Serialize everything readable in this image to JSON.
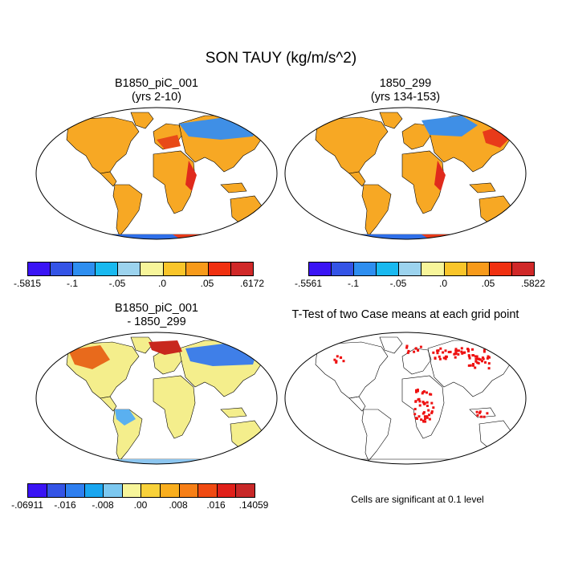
{
  "title": "SON TAUY (kg/m/s^2)",
  "panels": [
    {
      "id": "p1",
      "title_line1": "B1850_piC_001",
      "title_line2": "(yrs 2-10)"
    },
    {
      "id": "p2",
      "title_line1": "1850_299",
      "title_line2": "(yrs 134-153)"
    },
    {
      "id": "p3",
      "title_line1": "B1850_piC_001",
      "title_line2": "- 1850_299"
    },
    {
      "id": "p4",
      "title_line1": "T-Test of two Case means at each grid point",
      "title_line2": ""
    }
  ],
  "colorbars": [
    {
      "colors": [
        "#3a14f5",
        "#3454e6",
        "#2e8ef0",
        "#19b9f0",
        "#9cd3ee",
        "#f7f59a",
        "#f9c52a",
        "#f79a1a",
        "#f03010",
        "#d02828"
      ],
      "labels": [
        "-.5815",
        "-.1",
        "-.05",
        ".0",
        ".05",
        ".6172"
      ]
    },
    {
      "colors": [
        "#3a14f5",
        "#3454e6",
        "#2e8ef0",
        "#19b9f0",
        "#9cd3ee",
        "#f7f59a",
        "#f9c52a",
        "#f79a1a",
        "#f03010",
        "#d02828"
      ],
      "labels": [
        "-.5561",
        "-.1",
        "-.05",
        ".0",
        ".05",
        ".5822"
      ]
    },
    {
      "colors": [
        "#3a14f5",
        "#3454e6",
        "#2e7ff0",
        "#19a6f0",
        "#7cc8f0",
        "#f7f59a",
        "#f9d23a",
        "#f9ae1e",
        "#f77f16",
        "#f04a12",
        "#e0201a",
        "#c82828"
      ],
      "labels": [
        "-.06911",
        "-.016",
        "-.008",
        ".00",
        ".008",
        ".016",
        ".14059"
      ]
    }
  ],
  "significance_color": "#ee1111",
  "note": "Cells are significant at 0.1 level"
}
